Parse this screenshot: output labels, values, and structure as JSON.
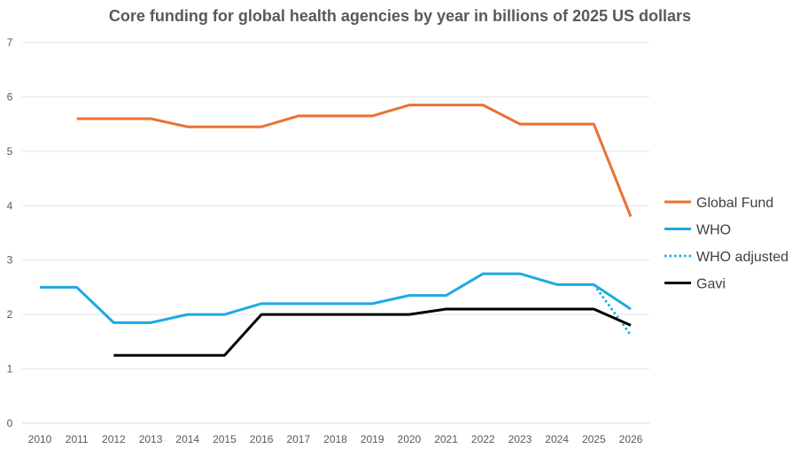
{
  "chart_data": {
    "type": "line",
    "title": "Core funding for global health agencies by year in billions of 2025 US dollars",
    "xlabel": "",
    "ylabel": "",
    "ylim": [
      0,
      7
    ],
    "yticks": [
      0,
      1,
      2,
      3,
      4,
      5,
      6,
      7
    ],
    "grid": true,
    "legend_position": "right",
    "x": [
      "2010",
      "2011",
      "2012",
      "2013",
      "2014",
      "2015",
      "2016",
      "2017",
      "2018",
      "2019",
      "2020",
      "2021",
      "2022",
      "2023",
      "2024",
      "2025",
      "2026"
    ],
    "series": [
      {
        "name": "Global Fund",
        "color": "#E97132",
        "style": "solid",
        "values": [
          null,
          5.6,
          5.6,
          5.6,
          5.45,
          5.45,
          5.45,
          5.65,
          5.65,
          5.65,
          5.85,
          5.85,
          5.85,
          5.5,
          5.5,
          5.5,
          3.8
        ]
      },
      {
        "name": "WHO",
        "color": "#1FA9E1",
        "style": "solid",
        "values": [
          2.5,
          2.5,
          1.85,
          1.85,
          2.0,
          2.0,
          2.2,
          2.2,
          2.2,
          2.2,
          2.35,
          2.35,
          2.75,
          2.75,
          2.55,
          2.55,
          2.1
        ]
      },
      {
        "name": "WHO adjusted",
        "color": "#1FA9E1",
        "style": "dotted",
        "values": [
          null,
          null,
          null,
          null,
          null,
          null,
          null,
          null,
          null,
          null,
          null,
          null,
          null,
          null,
          null,
          2.55,
          1.62
        ]
      },
      {
        "name": "Gavi",
        "color": "#000000",
        "style": "solid",
        "values": [
          null,
          null,
          1.25,
          1.25,
          1.25,
          1.25,
          2.0,
          2.0,
          2.0,
          2.0,
          2.0,
          2.1,
          2.1,
          2.1,
          2.1,
          2.1,
          1.8
        ]
      }
    ]
  }
}
